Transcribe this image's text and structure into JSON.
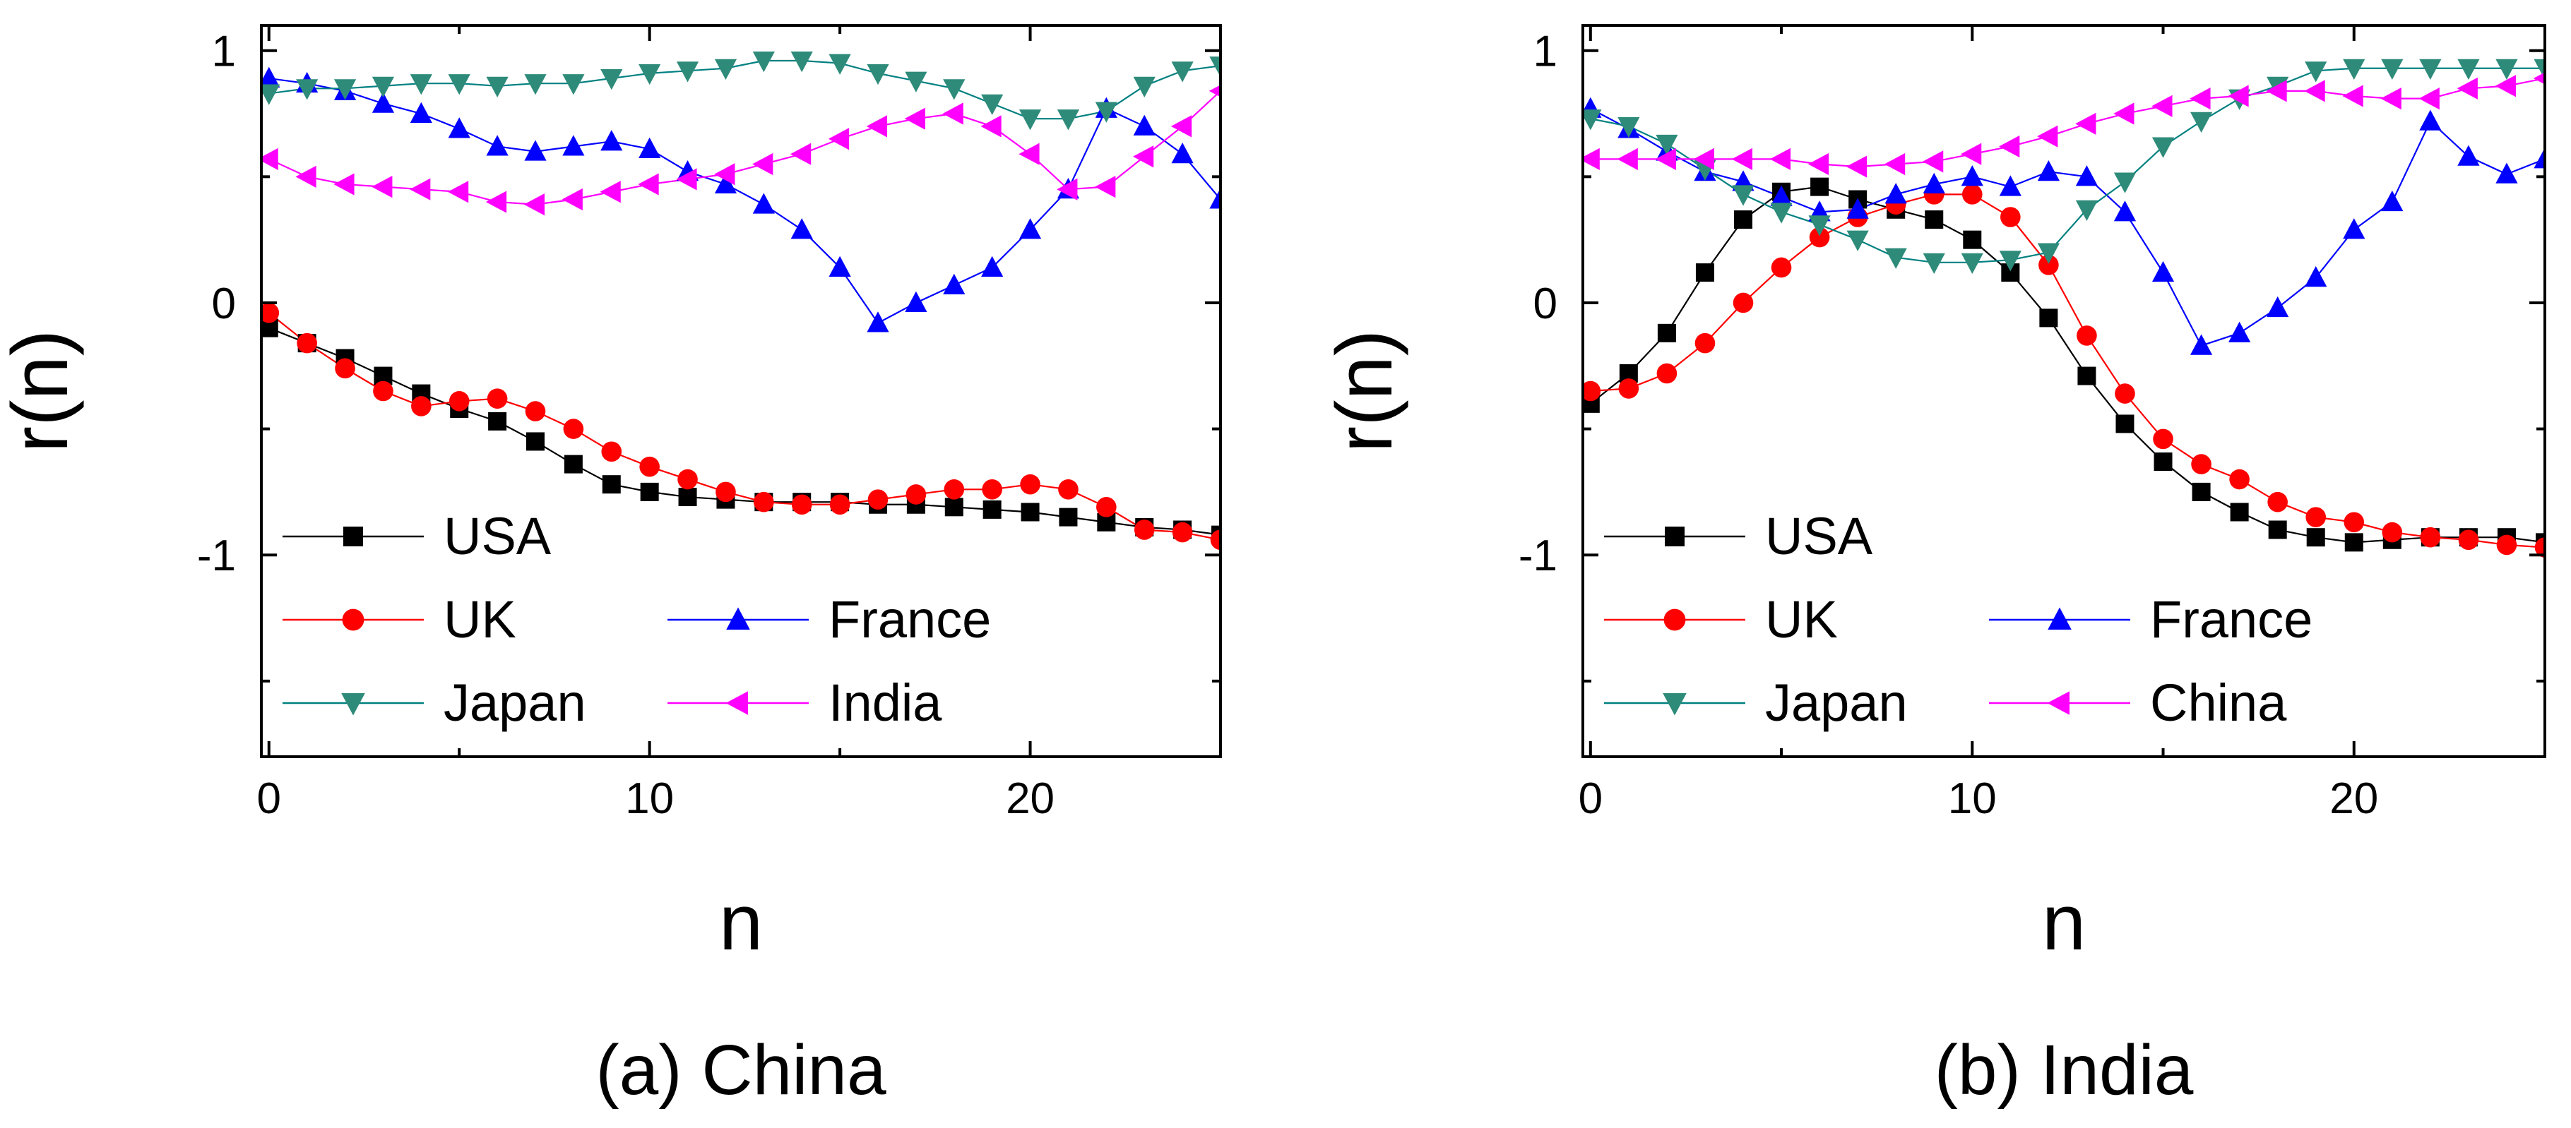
{
  "figure": {
    "y_axis_label": "r(n)",
    "x_axis_label": "n"
  },
  "chart_data": [
    {
      "type": "line",
      "caption": "(a) China",
      "xlabel": "n",
      "ylabel": "r(n)",
      "xlim": [
        -0.2,
        25
      ],
      "ylim": [
        -1.8,
        1.1
      ],
      "xticks": [
        0,
        10,
        20
      ],
      "yticks": [
        1,
        0,
        -1
      ],
      "x": [
        0,
        1,
        2,
        3,
        4,
        5,
        6,
        7,
        8,
        9,
        10,
        11,
        12,
        13,
        14,
        15,
        16,
        17,
        18,
        19,
        20,
        21,
        22,
        23,
        24,
        25
      ],
      "series": [
        {
          "name": "USA",
          "marker": "square",
          "color": "#000000",
          "markerColor": "#000000",
          "values": [
            -0.1,
            -0.16,
            -0.22,
            -0.29,
            -0.36,
            -0.42,
            -0.47,
            -0.55,
            -0.64,
            -0.72,
            -0.75,
            -0.77,
            -0.78,
            -0.79,
            -0.79,
            -0.79,
            -0.8,
            -0.8,
            -0.81,
            -0.82,
            -0.83,
            -0.85,
            -0.87,
            -0.89,
            -0.9,
            -0.92
          ]
        },
        {
          "name": "UK",
          "marker": "circle",
          "color": "#ff0000",
          "markerColor": "#ff0000",
          "values": [
            -0.04,
            -0.16,
            -0.26,
            -0.35,
            -0.41,
            -0.39,
            -0.38,
            -0.43,
            -0.5,
            -0.59,
            -0.65,
            -0.7,
            -0.75,
            -0.79,
            -0.8,
            -0.8,
            -0.78,
            -0.76,
            -0.74,
            -0.74,
            -0.72,
            -0.74,
            -0.81,
            -0.9,
            -0.91,
            -0.94
          ]
        },
        {
          "name": "France",
          "marker": "triangle-up",
          "color": "#0000ff",
          "markerColor": "#0000ff",
          "values": [
            0.89,
            0.87,
            0.84,
            0.79,
            0.75,
            0.69,
            0.62,
            0.6,
            0.62,
            0.64,
            0.61,
            0.52,
            0.47,
            0.39,
            0.29,
            0.14,
            -0.08,
            0.0,
            0.07,
            0.14,
            0.29,
            0.45,
            0.77,
            0.7,
            0.59,
            0.41
          ]
        },
        {
          "name": "Japan",
          "marker": "triangle-down",
          "color": "#008080",
          "markerColor": "#2e8b7a",
          "values": [
            0.83,
            0.85,
            0.85,
            0.86,
            0.87,
            0.87,
            0.86,
            0.87,
            0.87,
            0.89,
            0.91,
            0.92,
            0.93,
            0.96,
            0.96,
            0.95,
            0.91,
            0.88,
            0.85,
            0.79,
            0.73,
            0.73,
            0.76,
            0.86,
            0.92,
            0.94
          ]
        },
        {
          "name": "India",
          "marker": "triangle-left",
          "color": "#ff00ff",
          "markerColor": "#ff00ff",
          "values": [
            0.57,
            0.5,
            0.47,
            0.46,
            0.45,
            0.44,
            0.4,
            0.39,
            0.41,
            0.44,
            0.47,
            0.49,
            0.51,
            0.55,
            0.59,
            0.65,
            0.7,
            0.73,
            0.75,
            0.7,
            0.59,
            0.45,
            0.46,
            0.58,
            0.7,
            0.84
          ]
        }
      ],
      "legend": {
        "rows": [
          [
            "USA"
          ],
          [
            "UK",
            "France"
          ],
          [
            "Japan",
            "India"
          ]
        ],
        "position": "bottom-left"
      }
    },
    {
      "type": "line",
      "caption": "(b) India",
      "xlabel": "n",
      "ylabel": "r(n)",
      "xlim": [
        -0.2,
        25
      ],
      "ylim": [
        -1.8,
        1.1
      ],
      "xticks": [
        0,
        10,
        20
      ],
      "yticks": [
        1,
        0,
        -1
      ],
      "x": [
        0,
        1,
        2,
        3,
        4,
        5,
        6,
        7,
        8,
        9,
        10,
        11,
        12,
        13,
        14,
        15,
        16,
        17,
        18,
        19,
        20,
        21,
        22,
        23,
        24,
        25
      ],
      "series": [
        {
          "name": "USA",
          "marker": "square",
          "color": "#000000",
          "markerColor": "#000000",
          "values": [
            -0.4,
            -0.28,
            -0.12,
            0.12,
            0.33,
            0.44,
            0.46,
            0.41,
            0.37,
            0.33,
            0.25,
            0.12,
            -0.06,
            -0.29,
            -0.48,
            -0.63,
            -0.75,
            -0.83,
            -0.9,
            -0.93,
            -0.95,
            -0.94,
            -0.93,
            -0.93,
            -0.93,
            -0.95
          ]
        },
        {
          "name": "UK",
          "marker": "circle",
          "color": "#ff0000",
          "markerColor": "#ff0000",
          "values": [
            -0.35,
            -0.34,
            -0.28,
            -0.16,
            0.0,
            0.14,
            0.26,
            0.34,
            0.39,
            0.43,
            0.43,
            0.34,
            0.15,
            -0.13,
            -0.36,
            -0.54,
            -0.64,
            -0.7,
            -0.79,
            -0.85,
            -0.87,
            -0.91,
            -0.93,
            -0.94,
            -0.96,
            -0.97
          ]
        },
        {
          "name": "France",
          "marker": "triangle-up",
          "color": "#0000ff",
          "markerColor": "#0000ff",
          "values": [
            0.77,
            0.69,
            0.6,
            0.52,
            0.48,
            0.42,
            0.36,
            0.37,
            0.43,
            0.47,
            0.5,
            0.46,
            0.52,
            0.5,
            0.36,
            0.12,
            -0.17,
            -0.12,
            -0.02,
            0.1,
            0.29,
            0.4,
            0.72,
            0.58,
            0.51,
            0.57
          ]
        },
        {
          "name": "Japan",
          "marker": "triangle-down",
          "color": "#008080",
          "markerColor": "#2e8b7a",
          "values": [
            0.73,
            0.7,
            0.63,
            0.53,
            0.43,
            0.36,
            0.31,
            0.25,
            0.18,
            0.16,
            0.16,
            0.17,
            0.2,
            0.37,
            0.48,
            0.62,
            0.72,
            0.81,
            0.86,
            0.92,
            0.93,
            0.93,
            0.93,
            0.93,
            0.93,
            0.93
          ]
        },
        {
          "name": "China",
          "marker": "triangle-left",
          "color": "#ff00ff",
          "markerColor": "#ff00ff",
          "values": [
            0.57,
            0.57,
            0.57,
            0.57,
            0.57,
            0.57,
            0.55,
            0.54,
            0.55,
            0.56,
            0.59,
            0.62,
            0.66,
            0.71,
            0.75,
            0.78,
            0.81,
            0.82,
            0.84,
            0.84,
            0.82,
            0.81,
            0.81,
            0.85,
            0.86,
            0.89
          ]
        }
      ],
      "legend": {
        "rows": [
          [
            "USA"
          ],
          [
            "UK",
            "France"
          ],
          [
            "Japan",
            "China"
          ]
        ],
        "position": "bottom-left"
      }
    }
  ]
}
